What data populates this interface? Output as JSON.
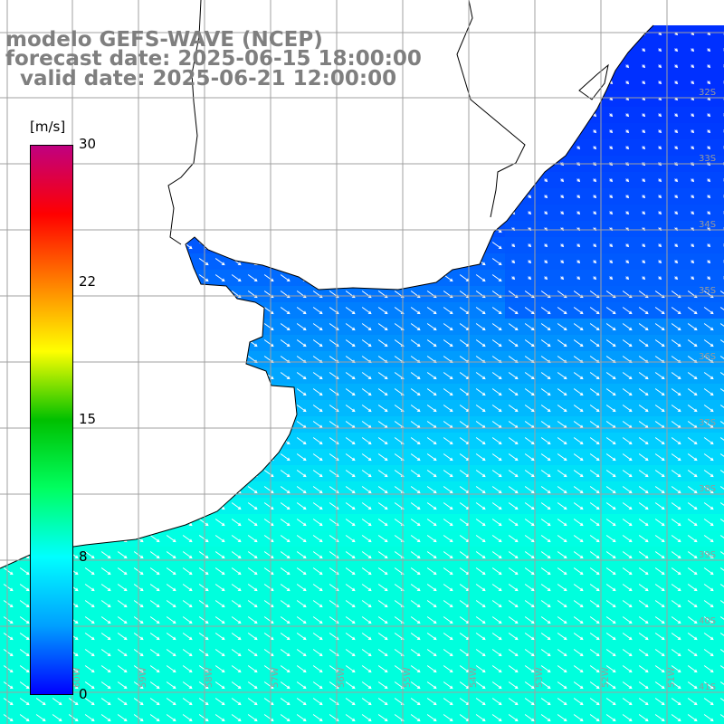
{
  "title": {
    "line1": "modelo GEFS-WAVE (NCEP)",
    "line2": "forecast date: 2025-06-15 18:00:00",
    "line3": "  valid date: 2025-06-21 12:00:00"
  },
  "colorbar": {
    "unit": "[m/s]",
    "ticks": [
      "30",
      "22",
      "15",
      "8",
      "0"
    ],
    "tick_values": [
      30,
      22,
      15,
      8,
      0
    ],
    "min": 0,
    "max": 30,
    "colors": [
      "#0000ff",
      "#00a0ff",
      "#00ffff",
      "#00ff60",
      "#00c000",
      "#ffff00",
      "#ff8000",
      "#ff0000",
      "#c00080"
    ]
  },
  "map": {
    "lat_labels": [
      "32S",
      "33S",
      "34S",
      "35S",
      "36S",
      "37S",
      "38S",
      "39S",
      "40S",
      "41S"
    ],
    "lon_labels": [
      "60W",
      "59W",
      "58W",
      "57W",
      "56W",
      "55W",
      "54W",
      "53W",
      "52W",
      "51W"
    ],
    "land_color": "#ffffff",
    "grid_color": "#a0a0a0",
    "arrow_color": "#ffffff"
  }
}
